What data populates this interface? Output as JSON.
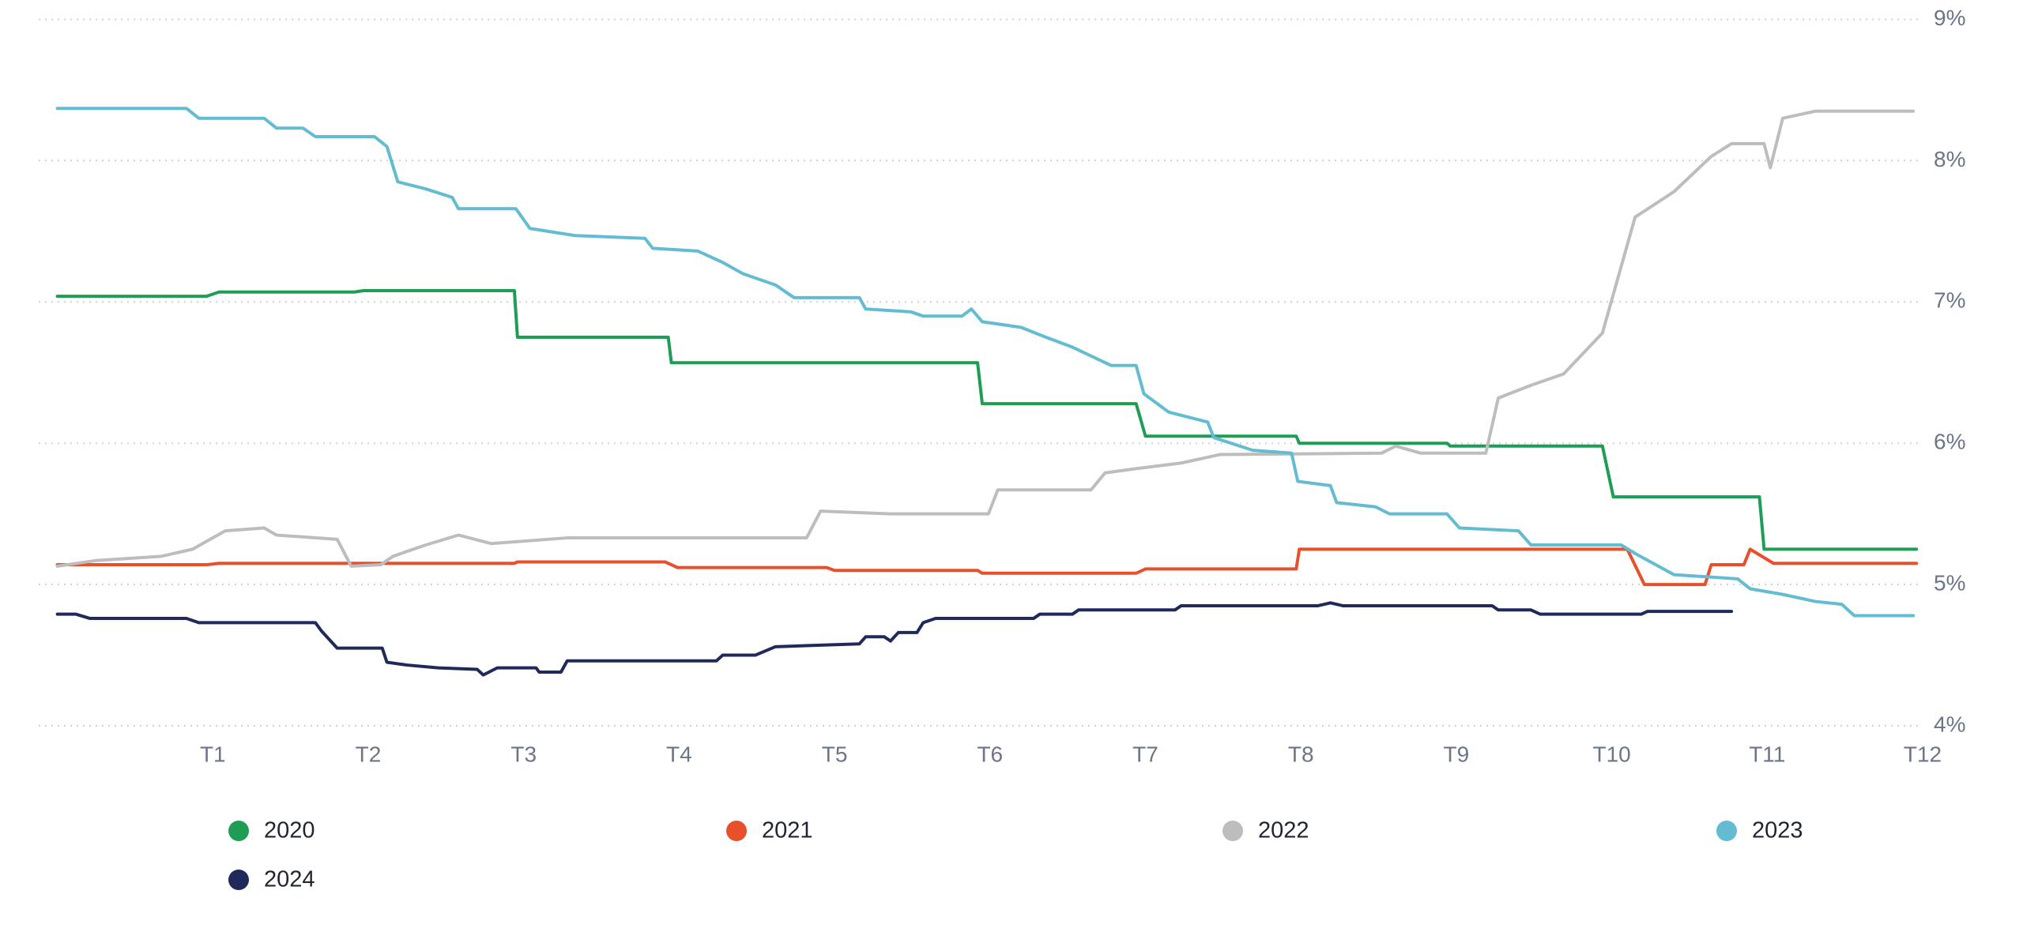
{
  "chart_data": {
    "type": "line",
    "xlim": [
      -0.12,
      12
    ],
    "xticks": [
      {
        "value": 1,
        "label": "T1"
      },
      {
        "value": 2,
        "label": "T2"
      },
      {
        "value": 3,
        "label": "T3"
      },
      {
        "value": 4,
        "label": "T4"
      },
      {
        "value": 5,
        "label": "T5"
      },
      {
        "value": 6,
        "label": "T6"
      },
      {
        "value": 7,
        "label": "T7"
      },
      {
        "value": 8,
        "label": "T8"
      },
      {
        "value": 9,
        "label": "T9"
      },
      {
        "value": 10,
        "label": "T10"
      },
      {
        "value": 11,
        "label": "T11"
      },
      {
        "value": 12,
        "label": "T12"
      }
    ],
    "ylim": [
      4,
      9
    ],
    "yticks": [
      {
        "value": 4,
        "label": "4%"
      },
      {
        "value": 5,
        "label": "5%"
      },
      {
        "value": 6,
        "label": "6%"
      },
      {
        "value": 7,
        "label": "7%"
      },
      {
        "value": 8,
        "label": "8%"
      },
      {
        "value": 9,
        "label": "9%"
      }
    ],
    "grid": true,
    "legend": "bottom",
    "series": [
      {
        "name": "2020",
        "color": "#1f9d55",
        "x": [
          0,
          0.96,
          1.04,
          1.91,
          1.97,
          2.94,
          2.96,
          3.93,
          3.95,
          5.92,
          5.95,
          6.94,
          7.0,
          7.97,
          7.99,
          8.94,
          8.96,
          9.94,
          10.01,
          10.95,
          10.98,
          11.96
        ],
        "values": [
          7.04,
          7.04,
          7.07,
          7.07,
          7.08,
          7.08,
          6.75,
          6.75,
          6.57,
          6.57,
          6.28,
          6.28,
          6.05,
          6.05,
          6.0,
          6.0,
          5.98,
          5.98,
          5.62,
          5.62,
          5.25,
          5.25
        ]
      },
      {
        "name": "2021",
        "color": "#e8502b",
        "x": [
          0,
          0.96,
          1.04,
          2.94,
          2.96,
          3.91,
          3.99,
          4.95,
          5.0,
          5.92,
          5.95,
          6.94,
          7.0,
          7.97,
          7.99,
          10.1,
          10.21,
          10.6,
          10.64,
          10.85,
          10.89,
          11.04,
          11.96
        ],
        "values": [
          5.14,
          5.14,
          5.15,
          5.15,
          5.16,
          5.16,
          5.12,
          5.12,
          5.1,
          5.1,
          5.08,
          5.08,
          5.11,
          5.11,
          5.25,
          5.25,
          5.0,
          5.0,
          5.14,
          5.14,
          5.25,
          5.15,
          5.15
        ]
      },
      {
        "name": "2022",
        "color": "#bdbdbd",
        "x": [
          0,
          0.25,
          0.67,
          0.87,
          1.08,
          1.33,
          1.41,
          1.8,
          1.89,
          2.08,
          2.16,
          2.37,
          2.58,
          2.79,
          3.28,
          4.82,
          4.91,
          5.36,
          5.99,
          6.05,
          6.65,
          6.74,
          6.94,
          7.23,
          7.48,
          8.52,
          8.61,
          8.77,
          9.19,
          9.27,
          9.48,
          9.69,
          9.94,
          10.15,
          10.4,
          10.64,
          10.77,
          10.98,
          11.02,
          11.1,
          11.31,
          11.94
        ],
        "values": [
          5.13,
          5.17,
          5.2,
          5.25,
          5.38,
          5.4,
          5.35,
          5.32,
          5.13,
          5.14,
          5.2,
          5.28,
          5.35,
          5.29,
          5.33,
          5.33,
          5.52,
          5.5,
          5.5,
          5.67,
          5.67,
          5.79,
          5.82,
          5.86,
          5.92,
          5.93,
          5.98,
          5.93,
          5.93,
          6.32,
          6.41,
          6.49,
          6.78,
          7.6,
          7.78,
          8.03,
          8.12,
          8.12,
          7.95,
          8.3,
          8.35,
          8.35
        ]
      },
      {
        "name": "2023",
        "color": "#63bcd1",
        "x": [
          0,
          0.83,
          0.91,
          1.33,
          1.41,
          1.58,
          1.66,
          2.04,
          2.12,
          2.19,
          2.37,
          2.54,
          2.58,
          2.95,
          3.04,
          3.33,
          3.78,
          3.83,
          4.12,
          4.28,
          4.41,
          4.62,
          4.74,
          5.16,
          5.2,
          5.49,
          5.57,
          5.82,
          5.88,
          5.95,
          6.2,
          6.36,
          6.53,
          6.78,
          6.94,
          6.99,
          7.15,
          7.4,
          7.44,
          7.69,
          7.94,
          7.98,
          8.19,
          8.23,
          8.48,
          8.57,
          8.94,
          9.02,
          9.4,
          9.48,
          10.06,
          10.15,
          10.4,
          10.81,
          10.89,
          11.1,
          11.31,
          11.48,
          11.56,
          11.94
        ],
        "values": [
          8.37,
          8.37,
          8.3,
          8.3,
          8.23,
          8.23,
          8.17,
          8.17,
          8.1,
          7.85,
          7.8,
          7.74,
          7.66,
          7.66,
          7.52,
          7.47,
          7.45,
          7.38,
          7.36,
          7.28,
          7.2,
          7.12,
          7.03,
          7.03,
          6.95,
          6.93,
          6.9,
          6.9,
          6.95,
          6.86,
          6.82,
          6.75,
          6.68,
          6.55,
          6.55,
          6.35,
          6.22,
          6.15,
          6.04,
          5.95,
          5.93,
          5.73,
          5.7,
          5.58,
          5.55,
          5.5,
          5.5,
          5.4,
          5.38,
          5.28,
          5.28,
          5.22,
          5.07,
          5.04,
          4.97,
          4.93,
          4.88,
          4.86,
          4.78,
          4.78
        ]
      },
      {
        "name": "2024",
        "color": "#1f2a5a",
        "x": [
          0,
          0.12,
          0.21,
          0.83,
          0.91,
          1.66,
          1.7,
          1.8,
          2.09,
          2.12,
          2.25,
          2.45,
          2.7,
          2.74,
          2.83,
          3.08,
          3.1,
          3.24,
          3.28,
          4.24,
          4.28,
          4.49,
          4.62,
          5.16,
          5.2,
          5.32,
          5.36,
          5.41,
          5.53,
          5.57,
          5.65,
          6.28,
          6.32,
          6.53,
          6.57,
          7.19,
          7.23,
          8.11,
          8.19,
          8.27,
          9.23,
          9.27,
          9.48,
          9.54,
          10.19,
          10.23,
          10.77
        ],
        "values": [
          4.79,
          4.79,
          4.76,
          4.76,
          4.73,
          4.73,
          4.67,
          4.55,
          4.55,
          4.45,
          4.43,
          4.41,
          4.4,
          4.36,
          4.41,
          4.41,
          4.38,
          4.38,
          4.46,
          4.46,
          4.5,
          4.5,
          4.56,
          4.58,
          4.63,
          4.63,
          4.6,
          4.66,
          4.66,
          4.73,
          4.76,
          4.76,
          4.79,
          4.79,
          4.82,
          4.82,
          4.85,
          4.85,
          4.87,
          4.85,
          4.85,
          4.82,
          4.82,
          4.79,
          4.79,
          4.81,
          4.81
        ]
      }
    ]
  }
}
